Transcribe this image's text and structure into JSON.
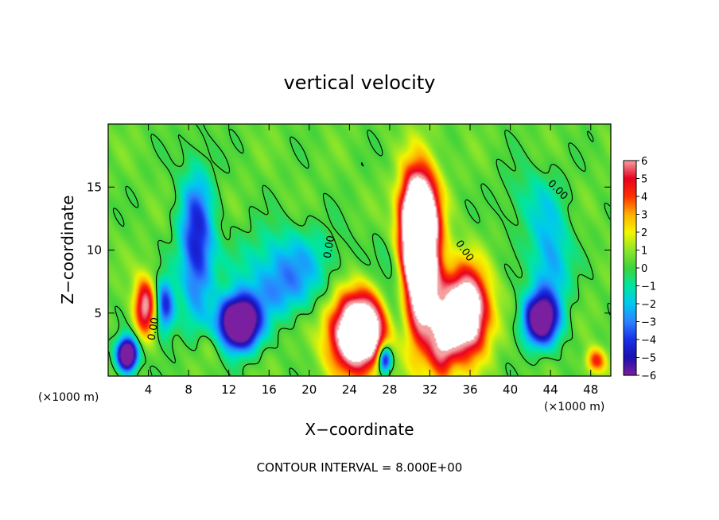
{
  "chart_data": {
    "type": "heatmap",
    "title": "vertical velocity",
    "xlabel": "X−coordinate",
    "ylabel": "Z−coordinate",
    "x_unit_left": "(×1000 m)",
    "x_unit_right": "(×1000 m)",
    "xlim": [
      0,
      50
    ],
    "ylim": [
      0,
      20
    ],
    "x_ticks": [
      4,
      8,
      12,
      16,
      20,
      24,
      28,
      32,
      36,
      40,
      44,
      48
    ],
    "y_ticks": [
      5,
      10,
      15
    ],
    "colorbar": {
      "range": [
        -6,
        6
      ],
      "labels": [
        "6",
        "5",
        "4",
        "3",
        "2",
        "1",
        "0",
        "−1",
        "−2",
        "−3",
        "−4",
        "−5",
        "−6"
      ],
      "stops": [
        {
          "v": -6,
          "c": "#7a1fa0"
        },
        {
          "v": -5,
          "c": "#1a0fb0"
        },
        {
          "v": -4,
          "c": "#1830e8"
        },
        {
          "v": -3,
          "c": "#2d82ff"
        },
        {
          "v": -2,
          "c": "#00c8f0"
        },
        {
          "v": -1,
          "c": "#00e6a0"
        },
        {
          "v": 0,
          "c": "#3ed23c"
        },
        {
          "v": 1,
          "c": "#8ee62a"
        },
        {
          "v": 2,
          "c": "#f5f500"
        },
        {
          "v": 3,
          "c": "#ffb000"
        },
        {
          "v": 4,
          "c": "#ff3000"
        },
        {
          "v": 5,
          "c": "#e80020"
        },
        {
          "v": 6,
          "c": "#f4a0a0"
        }
      ]
    },
    "field_features": [
      {
        "x": 31,
        "z": 9,
        "sx": 1.3,
        "sz": 4.2,
        "amp": 13
      },
      {
        "x": 30.8,
        "z": 13,
        "sx": 1.2,
        "sz": 2.2,
        "amp": 6
      },
      {
        "x": 25,
        "z": 3.5,
        "sx": 2.0,
        "sz": 2.2,
        "amp": 11
      },
      {
        "x": 35.5,
        "z": 5,
        "sx": 1.6,
        "sz": 2.4,
        "amp": 10
      },
      {
        "x": 33.2,
        "z": 2,
        "sx": 0.9,
        "sz": 2.0,
        "amp": 4
      },
      {
        "x": 29,
        "z": 6,
        "sx": 1.5,
        "sz": 3.0,
        "amp": -3
      },
      {
        "x": 27.5,
        "z": 1.3,
        "sx": 0.5,
        "sz": 0.8,
        "amp": -7
      },
      {
        "x": 3.7,
        "z": 5.5,
        "sx": 0.8,
        "sz": 1.6,
        "amp": 6
      },
      {
        "x": 1.9,
        "z": 1.7,
        "sx": 0.7,
        "sz": 0.9,
        "amp": -10
      },
      {
        "x": 5.6,
        "z": 5.5,
        "sx": 0.7,
        "sz": 1.5,
        "amp": -5
      },
      {
        "x": 13,
        "z": 4.2,
        "sx": 1.4,
        "sz": 1.4,
        "amp": -11
      },
      {
        "x": 8.8,
        "z": 10.5,
        "sx": 1.2,
        "sz": 4.0,
        "amp": -5
      },
      {
        "x": 18,
        "z": 9,
        "sx": 3.5,
        "sz": 2.0,
        "amp": -2.5
      },
      {
        "x": 17,
        "z": 6.5,
        "sx": 2.5,
        "sz": 1.5,
        "amp": -2
      },
      {
        "x": 43,
        "z": 4.5,
        "sx": 1.2,
        "sz": 1.4,
        "amp": -8
      },
      {
        "x": 44,
        "z": 9,
        "sx": 1.4,
        "sz": 3.0,
        "amp": -3
      },
      {
        "x": 48.5,
        "z": 1.2,
        "sx": 0.7,
        "sz": 0.7,
        "amp": 4
      },
      {
        "x": 42,
        "z": 14,
        "sx": 2.0,
        "sz": 2.0,
        "amp": -1.3
      },
      {
        "x": 10,
        "z": 2.5,
        "sx": 1.0,
        "sz": 1.0,
        "amp": 1
      }
    ],
    "contour_labels": [
      {
        "text": "0.00",
        "x": 4.8,
        "z": 3.7,
        "rotate": -80
      },
      {
        "text": "0.00",
        "x": 22.3,
        "z": 10.2,
        "rotate": -80
      },
      {
        "text": "0.00",
        "x": 35.2,
        "z": 9.8,
        "rotate": 55
      },
      {
        "text": "0.00",
        "x": 44.5,
        "z": 14.6,
        "rotate": 45
      }
    ],
    "annotation": "CONTOUR INTERVAL = 8.000E+00"
  }
}
